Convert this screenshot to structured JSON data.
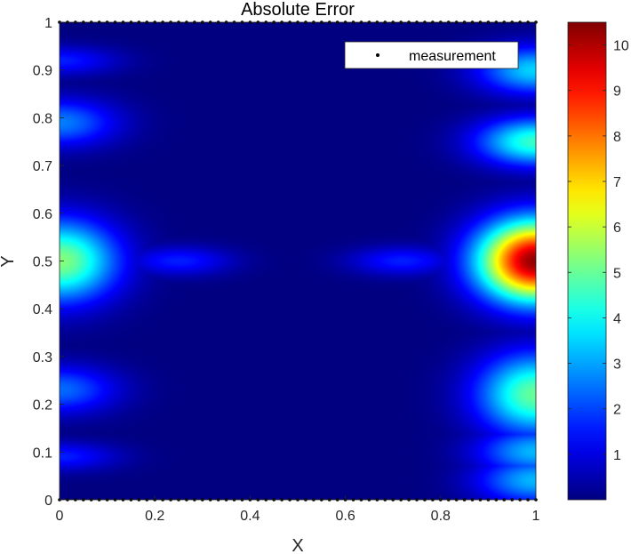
{
  "chart_data": {
    "type": "heatmap",
    "title": "Absolute Error",
    "xlabel": "X",
    "ylabel": "Y",
    "xlim": [
      0,
      1
    ],
    "ylim": [
      0,
      1
    ],
    "x_ticks": [
      "0",
      "0.2",
      "0.4",
      "0.6",
      "0.8",
      "1"
    ],
    "y_ticks": [
      "0",
      "0.1",
      "0.2",
      "0.3",
      "0.4",
      "0.5",
      "0.6",
      "0.7",
      "0.8",
      "0.9",
      "1"
    ],
    "colorbar": {
      "colormap": "jet",
      "range": [
        0,
        10.5
      ],
      "ticks": [
        "1",
        "2",
        "3",
        "4",
        "5",
        "6",
        "7",
        "8",
        "9",
        "10"
      ]
    },
    "legend": {
      "location": "top-right",
      "entries": [
        "measurement"
      ]
    },
    "measurement_points": {
      "y_values": [
        0,
        1
      ],
      "x_range": [
        0,
        1
      ],
      "count_per_edge": 61
    },
    "field_hotspots": [
      {
        "x": 1.0,
        "y": 0.5,
        "value": 10.3
      },
      {
        "x": 0.0,
        "y": 0.5,
        "value": 5.3
      },
      {
        "x": 1.0,
        "y": 0.22,
        "value": 5.0
      },
      {
        "x": 1.0,
        "y": 0.75,
        "value": 4.5
      },
      {
        "x": 1.0,
        "y": 0.1,
        "value": 3.2
      },
      {
        "x": 1.0,
        "y": 0.04,
        "value": 3.2
      },
      {
        "x": 1.0,
        "y": 0.9,
        "value": 3.5
      },
      {
        "x": 0.0,
        "y": 0.79,
        "value": 2.6
      },
      {
        "x": 0.0,
        "y": 0.23,
        "value": 2.4
      },
      {
        "x": 0.25,
        "y": 0.5,
        "value": 1.6
      },
      {
        "x": 0.72,
        "y": 0.5,
        "value": 1.6
      },
      {
        "x": 0.0,
        "y": 0.92,
        "value": 1.6
      },
      {
        "x": 0.0,
        "y": 0.09,
        "value": 1.6
      }
    ]
  }
}
